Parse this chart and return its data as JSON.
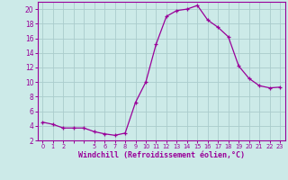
{
  "hours": [
    0,
    1,
    2,
    3,
    4,
    5,
    6,
    7,
    8,
    9,
    10,
    11,
    12,
    13,
    14,
    15,
    16,
    17,
    18,
    19,
    20,
    21,
    22,
    23
  ],
  "values": [
    4.5,
    4.2,
    3.7,
    3.7,
    3.7,
    3.2,
    2.9,
    2.7,
    3.0,
    7.2,
    10.0,
    15.2,
    19.0,
    19.8,
    20.0,
    20.5,
    18.5,
    17.5,
    16.2,
    12.2,
    10.5,
    9.5,
    9.2,
    9.3
  ],
  "line_color": "#990099",
  "marker": "+",
  "bg_color": "#cceae8",
  "grid_color": "#aacccc",
  "xlabel": "Windchill (Refroidissement éolien,°C)",
  "xlabel_color": "#990099",
  "tick_color": "#990099",
  "ylim": [
    2,
    21
  ],
  "yticks": [
    2,
    4,
    6,
    8,
    10,
    12,
    14,
    16,
    18,
    20
  ],
  "xtick_labels": [
    "0",
    "1",
    "2",
    "",
    "",
    "5",
    "6",
    "7",
    "8",
    "9",
    "10",
    "11",
    "12",
    "13",
    "14",
    "15",
    "16",
    "17",
    "18",
    "19",
    "20",
    "21",
    "22",
    "23"
  ],
  "spine_color": "#990099"
}
